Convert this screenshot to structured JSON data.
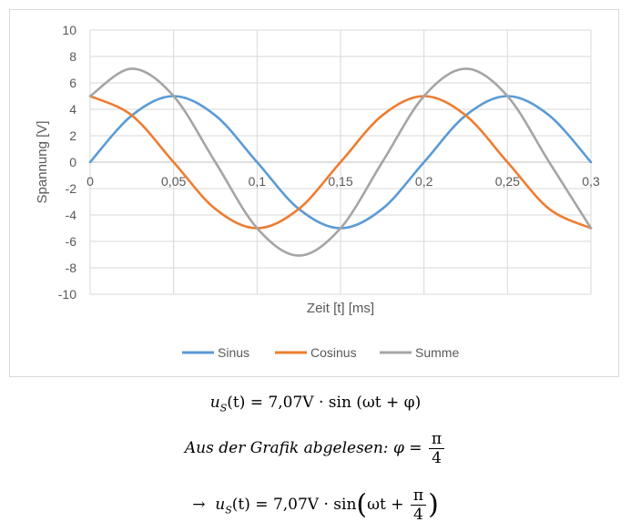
{
  "chart_data": {
    "type": "line",
    "title": "",
    "xlabel": "Zeit [t] [ms]",
    "ylabel": "Spannung [V]",
    "xlim": [
      0,
      0.3
    ],
    "ylim": [
      -10,
      10
    ],
    "x_ticks": [
      "0",
      "0,05",
      "0,1",
      "0,15",
      "0,2",
      "0,25",
      "0,3"
    ],
    "y_ticks": [
      "10",
      "8",
      "6",
      "4",
      "2",
      "0",
      "-2",
      "-4",
      "-6",
      "-8",
      "-10"
    ],
    "grid": true,
    "legend_position": "bottom",
    "series": [
      {
        "name": "Sinus",
        "color": "#5b9bd5",
        "x": [
          0,
          0.025,
          0.05,
          0.075,
          0.1,
          0.125,
          0.15,
          0.175,
          0.2,
          0.225,
          0.25,
          0.275,
          0.3
        ],
        "y": [
          0,
          3.54,
          5,
          3.54,
          0,
          -3.54,
          -5,
          -3.54,
          0,
          3.54,
          5,
          3.54,
          0
        ]
      },
      {
        "name": "Cosinus",
        "color": "#ed7d31",
        "x": [
          0,
          0.025,
          0.05,
          0.075,
          0.1,
          0.125,
          0.15,
          0.175,
          0.2,
          0.225,
          0.25,
          0.275,
          0.3
        ],
        "y": [
          5,
          3.54,
          0,
          -3.54,
          -5,
          -3.54,
          0,
          3.54,
          5,
          3.54,
          0,
          -3.54,
          -5
        ]
      },
      {
        "name": "Summe",
        "color": "#a5a5a5",
        "x": [
          0,
          0.025,
          0.05,
          0.075,
          0.1,
          0.125,
          0.15,
          0.175,
          0.2,
          0.225,
          0.25,
          0.275,
          0.3
        ],
        "y": [
          5,
          7.07,
          5,
          0,
          -5,
          -7.07,
          -5,
          0,
          5,
          7.07,
          5,
          0,
          -5
        ]
      }
    ]
  },
  "formulas": {
    "line1": {
      "lhs": "u",
      "sub": "S",
      "arg": "(t)",
      "rest": " = 7,07V · sin (ωt + φ)"
    },
    "line2": {
      "text": "Aus der Grafik abgelesen: φ =",
      "num": "π",
      "den": "4"
    },
    "line3": {
      "arrow": "→",
      "lhs": "u",
      "sub": "S",
      "arg": "(t)",
      "rest": " = 7,07V · sin",
      "inner": "ωt +",
      "num": "π",
      "den": "4"
    }
  }
}
